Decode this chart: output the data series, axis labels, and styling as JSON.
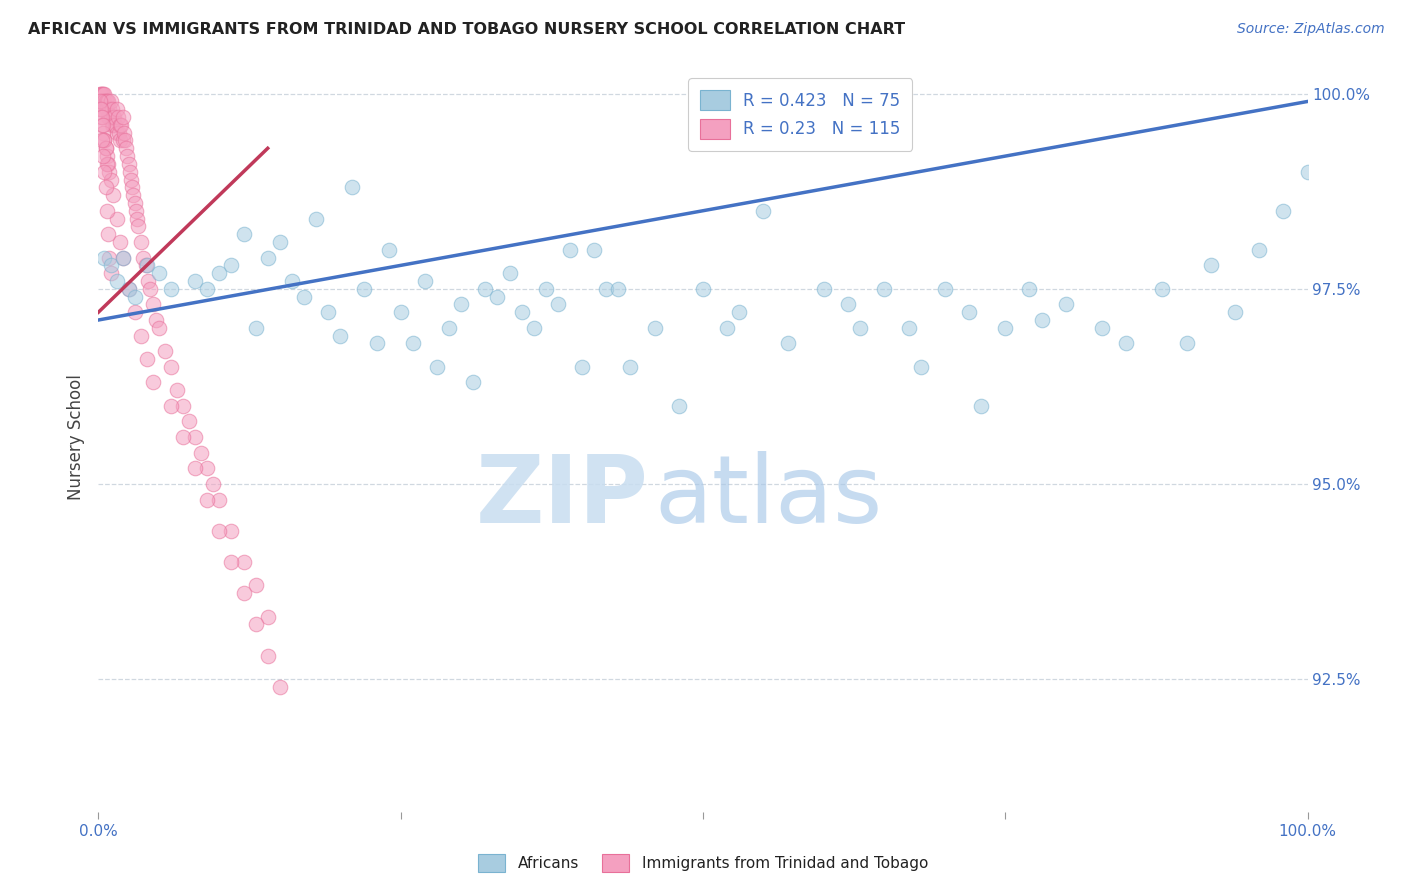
{
  "title": "AFRICAN VS IMMIGRANTS FROM TRINIDAD AND TOBAGO NURSERY SCHOOL CORRELATION CHART",
  "source": "Source: ZipAtlas.com",
  "ylabel": "Nursery School",
  "ytick_labels": [
    "100.0%",
    "97.5%",
    "95.0%",
    "92.5%"
  ],
  "ytick_values": [
    1.0,
    0.975,
    0.95,
    0.925
  ],
  "xlim": [
    0.0,
    1.0
  ],
  "ylim": [
    0.908,
    1.004
  ],
  "africans_R": 0.423,
  "africans_N": 75,
  "tt_R": 0.23,
  "tt_N": 115,
  "legend_label_africans": "Africans",
  "legend_label_tt": "Immigrants from Trinidad and Tobago",
  "color_africans": "#a8cce0",
  "color_africans_edge": "#7ab3d0",
  "color_tt": "#f4a0c0",
  "color_tt_edge": "#e8709a",
  "color_africans_line": "#4472c4",
  "color_tt_line": "#c0395a",
  "watermark_zip": "ZIP",
  "watermark_atlas": "atlas",
  "background_color": "#ffffff",
  "grid_color": "#d0d8e0",
  "africans_x": [
    0.005,
    0.01,
    0.015,
    0.02,
    0.025,
    0.03,
    0.04,
    0.05,
    0.06,
    0.08,
    0.1,
    0.12,
    0.13,
    0.14,
    0.15,
    0.16,
    0.17,
    0.18,
    0.19,
    0.2,
    0.22,
    0.24,
    0.25,
    0.26,
    0.27,
    0.28,
    0.3,
    0.32,
    0.33,
    0.35,
    0.37,
    0.39,
    0.4,
    0.42,
    0.44,
    0.46,
    0.48,
    0.5,
    0.53,
    0.55,
    0.6,
    0.63,
    0.65,
    0.68,
    0.7,
    0.73,
    0.75,
    0.78,
    0.8,
    0.83,
    0.85,
    0.88,
    0.9,
    0.92,
    0.94,
    0.96,
    0.98,
    1.0,
    0.09,
    0.11,
    0.21,
    0.23,
    0.29,
    0.31,
    0.34,
    0.36,
    0.38,
    0.41,
    0.43,
    0.52,
    0.57,
    0.62,
    0.67,
    0.72,
    0.77
  ],
  "africans_y": [
    0.979,
    0.978,
    0.976,
    0.979,
    0.975,
    0.974,
    0.978,
    0.977,
    0.975,
    0.976,
    0.977,
    0.982,
    0.97,
    0.979,
    0.981,
    0.976,
    0.974,
    0.984,
    0.972,
    0.969,
    0.975,
    0.98,
    0.972,
    0.968,
    0.976,
    0.965,
    0.973,
    0.975,
    0.974,
    0.972,
    0.975,
    0.98,
    0.965,
    0.975,
    0.965,
    0.97,
    0.96,
    0.975,
    0.972,
    0.985,
    0.975,
    0.97,
    0.975,
    0.965,
    0.975,
    0.96,
    0.97,
    0.971,
    0.973,
    0.97,
    0.968,
    0.975,
    0.968,
    0.978,
    0.972,
    0.98,
    0.985,
    0.99,
    0.975,
    0.978,
    0.988,
    0.968,
    0.97,
    0.963,
    0.977,
    0.97,
    0.973,
    0.98,
    0.975,
    0.97,
    0.968,
    0.973,
    0.97,
    0.972,
    0.975
  ],
  "tt_x": [
    0.001,
    0.001,
    0.002,
    0.002,
    0.003,
    0.003,
    0.004,
    0.004,
    0.005,
    0.005,
    0.005,
    0.006,
    0.006,
    0.007,
    0.007,
    0.008,
    0.008,
    0.009,
    0.009,
    0.01,
    0.01,
    0.011,
    0.011,
    0.012,
    0.012,
    0.013,
    0.014,
    0.015,
    0.015,
    0.016,
    0.017,
    0.018,
    0.018,
    0.019,
    0.02,
    0.02,
    0.021,
    0.022,
    0.023,
    0.024,
    0.025,
    0.026,
    0.027,
    0.028,
    0.029,
    0.03,
    0.031,
    0.032,
    0.033,
    0.035,
    0.037,
    0.039,
    0.041,
    0.043,
    0.045,
    0.048,
    0.05,
    0.055,
    0.06,
    0.065,
    0.07,
    0.075,
    0.08,
    0.085,
    0.09,
    0.095,
    0.1,
    0.11,
    0.12,
    0.13,
    0.14,
    0.001,
    0.002,
    0.003,
    0.004,
    0.005,
    0.006,
    0.007,
    0.008,
    0.009,
    0.01,
    0.012,
    0.015,
    0.018,
    0.02,
    0.025,
    0.03,
    0.035,
    0.04,
    0.045,
    0.001,
    0.002,
    0.003,
    0.004,
    0.005,
    0.006,
    0.007,
    0.003,
    0.004,
    0.005,
    0.006,
    0.007,
    0.008,
    0.009,
    0.01,
    0.06,
    0.07,
    0.08,
    0.09,
    0.1,
    0.11,
    0.12,
    0.13,
    0.14,
    0.15
  ],
  "tt_y": [
    1.0,
    0.999,
    1.0,
    0.999,
    1.0,
    0.999,
    1.0,
    0.999,
    1.0,
    0.999,
    0.998,
    0.999,
    0.998,
    0.999,
    0.998,
    0.999,
    0.997,
    0.998,
    0.997,
    0.999,
    0.997,
    0.998,
    0.996,
    0.997,
    0.996,
    0.997,
    0.996,
    0.998,
    0.995,
    0.997,
    0.995,
    0.996,
    0.994,
    0.996,
    0.997,
    0.994,
    0.995,
    0.994,
    0.993,
    0.992,
    0.991,
    0.99,
    0.989,
    0.988,
    0.987,
    0.986,
    0.985,
    0.984,
    0.983,
    0.981,
    0.979,
    0.978,
    0.976,
    0.975,
    0.973,
    0.971,
    0.97,
    0.967,
    0.965,
    0.962,
    0.96,
    0.958,
    0.956,
    0.954,
    0.952,
    0.95,
    0.948,
    0.944,
    0.94,
    0.937,
    0.933,
    0.998,
    0.997,
    0.996,
    0.995,
    0.994,
    0.993,
    0.992,
    0.991,
    0.99,
    0.989,
    0.987,
    0.984,
    0.981,
    0.979,
    0.975,
    0.972,
    0.969,
    0.966,
    0.963,
    0.999,
    0.998,
    0.997,
    0.996,
    0.994,
    0.993,
    0.991,
    0.994,
    0.992,
    0.99,
    0.988,
    0.985,
    0.982,
    0.979,
    0.977,
    0.96,
    0.956,
    0.952,
    0.948,
    0.944,
    0.94,
    0.936,
    0.932,
    0.928,
    0.924
  ],
  "africans_line_x": [
    0.0,
    1.0
  ],
  "africans_line_y": [
    0.971,
    0.999
  ],
  "tt_line_x": [
    0.0,
    0.14
  ],
  "tt_line_y": [
    0.972,
    0.993
  ]
}
